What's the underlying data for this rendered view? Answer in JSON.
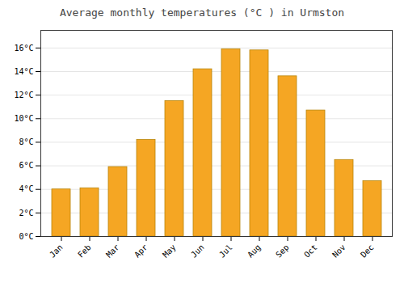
{
  "chart_data": {
    "type": "bar",
    "title": "Average monthly temperatures (°C ) in Urmston",
    "categories": [
      "Jan",
      "Feb",
      "Mar",
      "Apr",
      "May",
      "Jun",
      "Jul",
      "Aug",
      "Sep",
      "Oct",
      "Nov",
      "Dec"
    ],
    "values": [
      4.0,
      4.1,
      5.9,
      8.2,
      11.5,
      14.2,
      15.9,
      15.8,
      13.6,
      10.7,
      6.5,
      4.7
    ],
    "color": "#F5A623",
    "ylim": [
      0,
      17.5
    ],
    "yticks": [
      {
        "value": 0,
        "label": "0°C"
      },
      {
        "value": 2,
        "label": "2°C"
      },
      {
        "value": 4,
        "label": "4°C"
      },
      {
        "value": 6,
        "label": "6°C"
      },
      {
        "value": 8,
        "label": "8°C"
      },
      {
        "value": 10,
        "label": "10°C"
      },
      {
        "value": 12,
        "label": "12°C"
      },
      {
        "value": 14,
        "label": "14°C"
      },
      {
        "value": 16,
        "label": "16°C"
      }
    ],
    "grid": true
  }
}
